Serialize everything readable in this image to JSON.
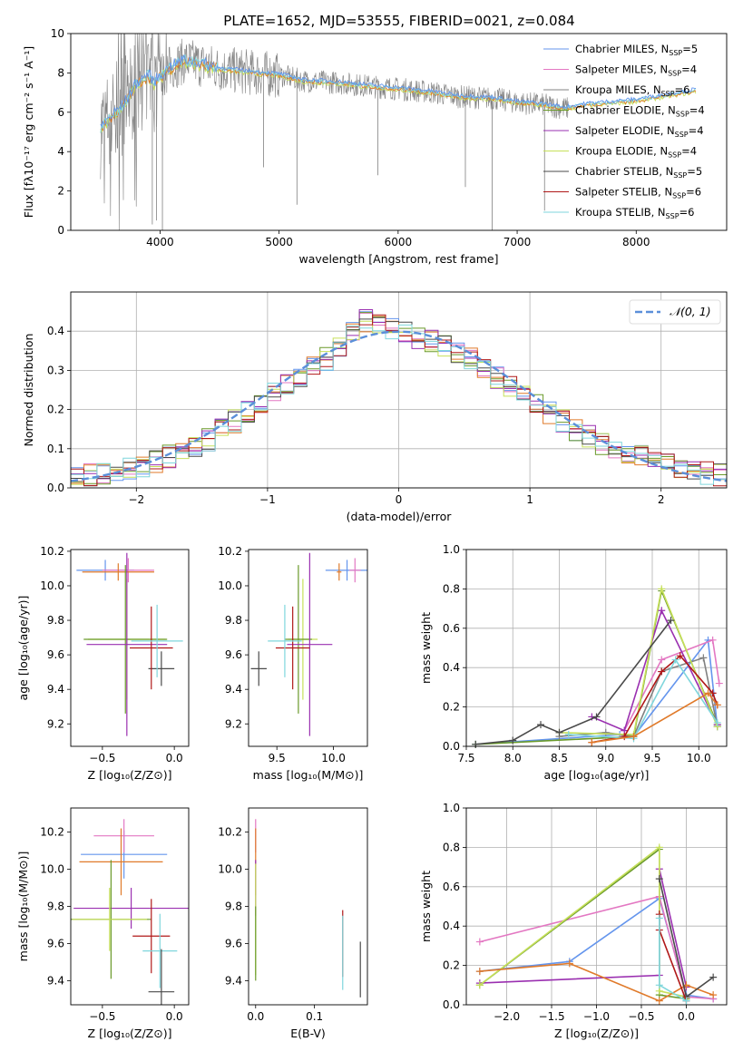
{
  "figure": {
    "title": "PLATE=1652, MJD=53555, FIBERID=0021, z=0.084"
  },
  "colors": {
    "Chabrier_MILES": "#6495ed",
    "Salpeter_MILES": "#e377c2",
    "Kroupa_MILES": "#808080",
    "Chabrier_ELODIE": "#6a9a2a",
    "Salpeter_ELODIE": "#9a2fb0",
    "Kroupa_ELODIE": "#c6e05a",
    "Chabrier_STELIB": "#4a4a4a",
    "Salpeter_STELIB": "#b01818",
    "Kroupa_STELIB": "#7fd6dc",
    "observed": "#808080",
    "orange": "#e07a2a",
    "normal_curve": "#5b8fd9"
  },
  "chart_data": [
    {
      "id": "spectrum",
      "type": "line",
      "title": "PLATE=1652, MJD=53555, FIBERID=0021, z=0.084",
      "xlabel": "wavelength [Angstrom, rest frame]",
      "ylabel": "Flux [fλ10⁻¹⁷ erg cm⁻² s⁻¹ A⁻¹]",
      "xlim": [
        3250,
        8760
      ],
      "ylim": [
        0,
        10
      ],
      "xticks": [
        4000,
        5000,
        6000,
        7000,
        8000
      ],
      "yticks": [
        0,
        2,
        4,
        6,
        8,
        10
      ],
      "grid": false,
      "legend_placement": "right",
      "legend": [
        {
          "label": "Chabrier MILES, N",
          "sub": "SSP",
          "suffix": "=5",
          "color": "Chabrier_MILES"
        },
        {
          "label": "Salpeter MILES, N",
          "sub": "SSP",
          "suffix": "=4",
          "color": "Salpeter_MILES"
        },
        {
          "label": "Kroupa MILES, N",
          "sub": "SSP",
          "suffix": "=6",
          "color": "Kroupa_MILES"
        },
        {
          "label": "Chabrier ELODIE, N",
          "sub": "SSP",
          "suffix": "=4",
          "color": "Chabrier_ELODIE"
        },
        {
          "label": "Salpeter ELODIE, N",
          "sub": "SSP",
          "suffix": "=4",
          "color": "Salpeter_ELODIE"
        },
        {
          "label": "Kroupa ELODIE, N",
          "sub": "SSP",
          "suffix": "=4",
          "color": "Kroupa_ELODIE"
        },
        {
          "label": "Chabrier STELIB, N",
          "sub": "SSP",
          "suffix": "=5",
          "color": "Chabrier_STELIB"
        },
        {
          "label": "Salpeter STELIB, N",
          "sub": "SSP",
          "suffix": "=6",
          "color": "Salpeter_STELIB"
        },
        {
          "label": "Kroupa STELIB, N",
          "sub": "SSP",
          "suffix": "=6",
          "color": "Kroupa_STELIB"
        }
      ],
      "continuum": {
        "x": [
          3500,
          3550,
          3600,
          3700,
          3800,
          3900,
          3950,
          4000,
          4100,
          4200,
          4300,
          4500,
          4800,
          5000,
          5200,
          5500,
          5800,
          6000,
          6300,
          6500,
          6800,
          7000,
          7200,
          7400
        ],
        "y": [
          5.2,
          5.5,
          5.8,
          6.4,
          7.4,
          7.9,
          7.5,
          7.8,
          8.3,
          8.6,
          8.5,
          8.2,
          8.0,
          7.9,
          7.6,
          7.5,
          7.3,
          7.2,
          7.0,
          6.8,
          6.7,
          6.5,
          6.4,
          6.2
        ]
      },
      "model_tail": {
        "x": [
          7400,
          7600,
          7800,
          8000,
          8200,
          8500
        ],
        "y": [
          6.2,
          6.4,
          6.5,
          6.6,
          6.8,
          7.1
        ]
      },
      "dips": [
        {
          "x": 3935,
          "y": 0.3
        },
        {
          "x": 3970,
          "y": 0.5
        },
        {
          "x": 4020,
          "y": 0.0
        },
        {
          "x": 5150,
          "y": 1.3
        },
        {
          "x": 4870,
          "y": 3.2
        },
        {
          "x": 5830,
          "y": 2.8
        },
        {
          "x": 6565,
          "y": 2.2
        },
        {
          "x": 6790,
          "y": 0.0
        },
        {
          "x": 7230,
          "y": 1.0
        }
      ]
    },
    {
      "id": "residuals",
      "type": "line",
      "xlabel": "(data-model)/error",
      "ylabel": "Normed distribution",
      "xlim": [
        -2.5,
        2.5
      ],
      "ylim": [
        0,
        0.5
      ],
      "xticks": [
        -2,
        -1,
        0,
        1,
        2
      ],
      "yticks": [
        0.0,
        0.1,
        0.2,
        0.3,
        0.4
      ],
      "grid": true,
      "legend_placement": "top-right",
      "legend": [
        {
          "label": "𝒩(0, 1)",
          "color": "normal_curve"
        }
      ],
      "bin_width": 0.1,
      "histogram_shape": {
        "x": [
          -2.5,
          -2.0,
          -1.5,
          -1.0,
          -0.5,
          -0.3,
          0.0,
          0.3,
          0.5,
          1.0,
          1.5,
          2.0,
          2.5
        ],
        "y": [
          0.025,
          0.05,
          0.11,
          0.23,
          0.34,
          0.43,
          0.4,
          0.37,
          0.34,
          0.22,
          0.12,
          0.06,
          0.03
        ]
      }
    },
    {
      "id": "age_vs_Z",
      "type": "scatter",
      "xlabel": "Z [log₁₀(Z/Z⊙)]",
      "ylabel": "age  [log₁₀(age/yr)]",
      "xlim": [
        -0.72,
        0.1
      ],
      "ylim": [
        9.07,
        10.21
      ],
      "xticks": [
        -0.5,
        0.0
      ],
      "yticks": [
        9.2,
        9.4,
        9.6,
        9.8,
        10.0,
        10.2
      ],
      "grid": false,
      "points": [
        {
          "s": "Chabrier_MILES",
          "x": -0.48,
          "xe": 0.2,
          "y": 10.09,
          "ye": 0.06
        },
        {
          "s": "Salpeter_MILES",
          "x": -0.32,
          "xe": 0.18,
          "y": 10.09,
          "ye": 0.07
        },
        {
          "s": "orange",
          "x": -0.39,
          "xe": 0.25,
          "y": 10.08,
          "ye": 0.05
        },
        {
          "s": "Kroupa_ELODIE",
          "x": -0.33,
          "xe": 0.27,
          "y": 9.69,
          "ye": 0.35
        },
        {
          "s": "Chabrier_ELODIE",
          "x": -0.34,
          "xe": 0.29,
          "y": 9.69,
          "ye": 0.43
        },
        {
          "s": "Salpeter_ELODIE",
          "x": -0.33,
          "xe": 0.28,
          "y": 9.66,
          "ye": 0.53
        },
        {
          "s": "Chabrier_STELIB",
          "x": -0.09,
          "xe": 0.09,
          "y": 9.52,
          "ye": 0.1
        },
        {
          "s": "Salpeter_STELIB",
          "x": -0.16,
          "xe": 0.15,
          "y": 9.64,
          "ye": 0.24
        },
        {
          "s": "Kroupa_STELIB",
          "x": -0.12,
          "xe": 0.18,
          "y": 9.68,
          "ye": 0.21
        }
      ]
    },
    {
      "id": "age_vs_mass",
      "type": "scatter",
      "xlabel": "mass [log₁₀(M/M⊙)]",
      "ylabel": "",
      "xlim": [
        9.25,
        10.3
      ],
      "ylim": [
        9.07,
        10.21
      ],
      "xticks": [
        9.5,
        10.0
      ],
      "yticks": [
        9.2,
        9.4,
        9.6,
        9.8,
        10.0,
        10.2
      ],
      "grid": false,
      "points": [
        {
          "s": "Chabrier_MILES",
          "x": 10.12,
          "xe": 0.19,
          "y": 10.09,
          "ye": 0.06
        },
        {
          "s": "Salpeter_MILES",
          "x": 10.19,
          "xe": 0.05,
          "y": 10.09,
          "ye": 0.07
        },
        {
          "s": "orange",
          "x": 10.05,
          "xe": 0.02,
          "y": 10.08,
          "ye": 0.05
        },
        {
          "s": "Kroupa_ELODIE",
          "x": 9.73,
          "xe": 0.13,
          "y": 9.69,
          "ye": 0.35
        },
        {
          "s": "Chabrier_ELODIE",
          "x": 9.69,
          "xe": 0.12,
          "y": 9.69,
          "ye": 0.43
        },
        {
          "s": "Salpeter_ELODIE",
          "x": 9.79,
          "xe": 0.2,
          "y": 9.66,
          "ye": 0.53
        },
        {
          "s": "Chabrier_STELIB",
          "x": 9.34,
          "xe": 0.07,
          "y": 9.52,
          "ye": 0.1
        },
        {
          "s": "Salpeter_STELIB",
          "x": 9.64,
          "xe": 0.15,
          "y": 9.64,
          "ye": 0.24
        },
        {
          "s": "Kroupa_STELIB",
          "x": 9.57,
          "xe": 0.15,
          "y": 9.68,
          "ye": 0.21
        }
      ]
    },
    {
      "id": "weight_vs_age",
      "type": "line",
      "xlabel": "age  [log₁₀(age/yr)]",
      "ylabel": "mass weight",
      "xlim": [
        7.5,
        10.3
      ],
      "ylim": [
        0,
        1
      ],
      "xticks": [
        7.5,
        8.0,
        8.5,
        9.0,
        9.5,
        10.0
      ],
      "yticks": [
        0.0,
        0.2,
        0.4,
        0.6,
        0.8,
        1.0
      ],
      "grid": true,
      "series": [
        {
          "s": "Chabrier_MILES",
          "x": [
            7.6,
            9.15,
            9.3,
            10.1,
            10.2
          ],
          "y": [
            0.01,
            0.06,
            0.05,
            0.54,
            0.1
          ]
        },
        {
          "s": "Salpeter_MILES",
          "x": [
            9.2,
            9.6,
            10.15,
            10.22
          ],
          "y": [
            0.08,
            0.44,
            0.54,
            0.32
          ]
        },
        {
          "s": "Kroupa_MILES",
          "x": [
            8.5,
            9.0,
            9.3,
            9.6,
            10.05,
            10.2
          ],
          "y": [
            0.05,
            0.07,
            0.05,
            0.38,
            0.45,
            0.1
          ]
        },
        {
          "s": "Chabrier_ELODIE",
          "x": [
            7.6,
            9.3,
            9.6,
            10.2
          ],
          "y": [
            0.01,
            0.05,
            0.79,
            0.11
          ]
        },
        {
          "s": "Salpeter_ELODIE",
          "x": [
            8.85,
            9.2,
            9.6,
            10.2
          ],
          "y": [
            0.15,
            0.08,
            0.69,
            0.11
          ]
        },
        {
          "s": "Kroupa_ELODIE",
          "x": [
            8.5,
            9.3,
            9.6,
            10.2
          ],
          "y": [
            0.07,
            0.06,
            0.8,
            0.1
          ]
        },
        {
          "s": "Chabrier_STELIB",
          "x": [
            7.6,
            8.0,
            8.3,
            8.5,
            8.9,
            9.7
          ],
          "y": [
            0.01,
            0.03,
            0.11,
            0.07,
            0.15,
            0.64
          ]
        },
        {
          "s": "Salpeter_STELIB",
          "x": [
            8.85,
            9.2,
            9.6,
            9.8,
            10.15,
            10.2
          ],
          "y": [
            0.02,
            0.05,
            0.38,
            0.46,
            0.27,
            0.21
          ]
        },
        {
          "s": "Kroupa_STELIB",
          "x": [
            8.6,
            9.3,
            9.75,
            10.2
          ],
          "y": [
            0.06,
            0.04,
            0.44,
            0.12
          ]
        },
        {
          "s": "orange",
          "x": [
            8.85,
            9.3,
            10.1,
            10.2
          ],
          "y": [
            0.02,
            0.05,
            0.27,
            0.21
          ]
        }
      ]
    },
    {
      "id": "mass_vs_Z",
      "type": "scatter",
      "xlabel": "Z [log₁₀(Z/Z⊙)]",
      "ylabel": "mass [log₁₀(M/M⊙)]",
      "xlim": [
        -0.72,
        0.1
      ],
      "ylim": [
        9.27,
        10.33
      ],
      "xticks": [
        -0.5,
        0.0
      ],
      "yticks": [
        9.4,
        9.6,
        9.8,
        10.0,
        10.2
      ],
      "grid": false,
      "points": [
        {
          "s": "Chabrier_MILES",
          "x": -0.35,
          "xe": 0.3,
          "y": 10.08,
          "ye": 0.13
        },
        {
          "s": "Salpeter_MILES",
          "x": -0.35,
          "xe": 0.21,
          "y": 10.18,
          "ye": 0.09
        },
        {
          "s": "orange",
          "x": -0.37,
          "xe": 0.29,
          "y": 10.04,
          "ye": 0.18
        },
        {
          "s": "Salpeter_ELODIE",
          "x": -0.3,
          "xe": 0.4,
          "y": 9.79,
          "ye": 0.11
        },
        {
          "s": "Chabrier_ELODIE",
          "x": -0.44,
          "xe": 0.28,
          "y": 9.73,
          "ye": 0.32
        },
        {
          "s": "Kroupa_ELODIE",
          "x": -0.45,
          "xe": 0.26,
          "y": 9.73,
          "ye": 0.17
        },
        {
          "s": "Salpeter_STELIB",
          "x": -0.16,
          "xe": 0.13,
          "y": 9.64,
          "ye": 0.2
        },
        {
          "s": "Kroupa_STELIB",
          "x": -0.1,
          "xe": 0.12,
          "y": 9.56,
          "ye": 0.2
        },
        {
          "s": "Chabrier_STELIB",
          "x": -0.09,
          "xe": 0.09,
          "y": 9.34,
          "ye": 0.23
        }
      ]
    },
    {
      "id": "mass_vs_ebv",
      "type": "scatter",
      "xlabel": "E(B-V)",
      "ylabel": "",
      "xlim": [
        -0.012,
        0.19
      ],
      "ylim": [
        9.27,
        10.33
      ],
      "xticks": [
        0.0,
        0.1
      ],
      "yticks": [
        9.4,
        9.6,
        9.8,
        10.0,
        10.2
      ],
      "grid": false,
      "points": [
        {
          "s": "Salpeter_MILES",
          "x": 0.0,
          "y": 10.18,
          "ye": 0.09
        },
        {
          "s": "orange",
          "x": 0.0,
          "y": 10.04,
          "ye": 0.18
        },
        {
          "s": "Salpeter_ELODIE",
          "x": 0.0,
          "y": 9.9,
          "ye": 0.15
        },
        {
          "s": "Kroupa_ELODIE",
          "x": 0.0,
          "y": 9.73,
          "ye": 0.3
        },
        {
          "s": "Chabrier_ELODIE",
          "x": 0.0,
          "y": 9.6,
          "ye": 0.2
        },
        {
          "s": "Salpeter_STELIB",
          "x": 0.148,
          "y": 9.6,
          "ye": 0.18
        },
        {
          "s": "Kroupa_STELIB",
          "x": 0.148,
          "y": 9.55,
          "ye": 0.2
        },
        {
          "s": "Chabrier_STELIB",
          "x": 0.178,
          "y": 9.46,
          "ye": 0.15
        }
      ]
    },
    {
      "id": "weight_vs_Z",
      "type": "line",
      "xlabel": "Z [log₁₀(Z/Z⊙)]",
      "ylabel": "mass weight",
      "xlim": [
        -2.45,
        0.45
      ],
      "ylim": [
        0,
        1
      ],
      "xticks": [
        -2.0,
        -1.5,
        -1.0,
        -0.5,
        0.0
      ],
      "yticks": [
        0.0,
        0.2,
        0.4,
        0.6,
        0.8,
        1.0
      ],
      "grid": true,
      "series": [
        {
          "s": "Chabrier_MILES",
          "x": [
            -2.3,
            -1.3,
            -0.3,
            0.0,
            0.3
          ],
          "y": [
            0.17,
            0.22,
            0.54,
            0.05,
            0.03
          ]
        },
        {
          "s": "Salpeter_MILES",
          "x": [
            -2.3,
            -0.3,
            0.0,
            0.3
          ],
          "y": [
            0.32,
            0.55,
            0.04,
            0.03
          ]
        },
        {
          "s": "Salpeter_ELODIE",
          "x": [
            -2.3,
            -0.3,
            -0.3,
            0.0
          ],
          "y": [
            0.11,
            0.15,
            0.69,
            0.09
          ]
        },
        {
          "s": "Chabrier_ELODIE",
          "x": [
            -2.3,
            -0.3,
            -0.3,
            0.0
          ],
          "y": [
            0.1,
            0.79,
            0.05,
            0.03
          ]
        },
        {
          "s": "Kroupa_ELODIE",
          "x": [
            -2.3,
            -0.3,
            -0.3,
            0.0
          ],
          "y": [
            0.1,
            0.8,
            0.07,
            0.04
          ]
        },
        {
          "s": "orange",
          "x": [
            -2.3,
            -1.3,
            -0.3,
            0.0,
            0.3
          ],
          "y": [
            0.17,
            0.21,
            0.02,
            0.1,
            0.05
          ]
        },
        {
          "s": "Chabrier_STELIB",
          "x": [
            -0.3,
            0.0,
            0.3
          ],
          "y": [
            0.64,
            0.04,
            0.14
          ]
        },
        {
          "s": "Salpeter_STELIB",
          "x": [
            -0.3,
            -0.3,
            0.0
          ],
          "y": [
            0.46,
            0.38,
            0.02
          ]
        },
        {
          "s": "Kroupa_STELIB",
          "x": [
            -0.3,
            -0.3,
            0.0
          ],
          "y": [
            0.44,
            0.1,
            0.02
          ]
        }
      ]
    }
  ]
}
